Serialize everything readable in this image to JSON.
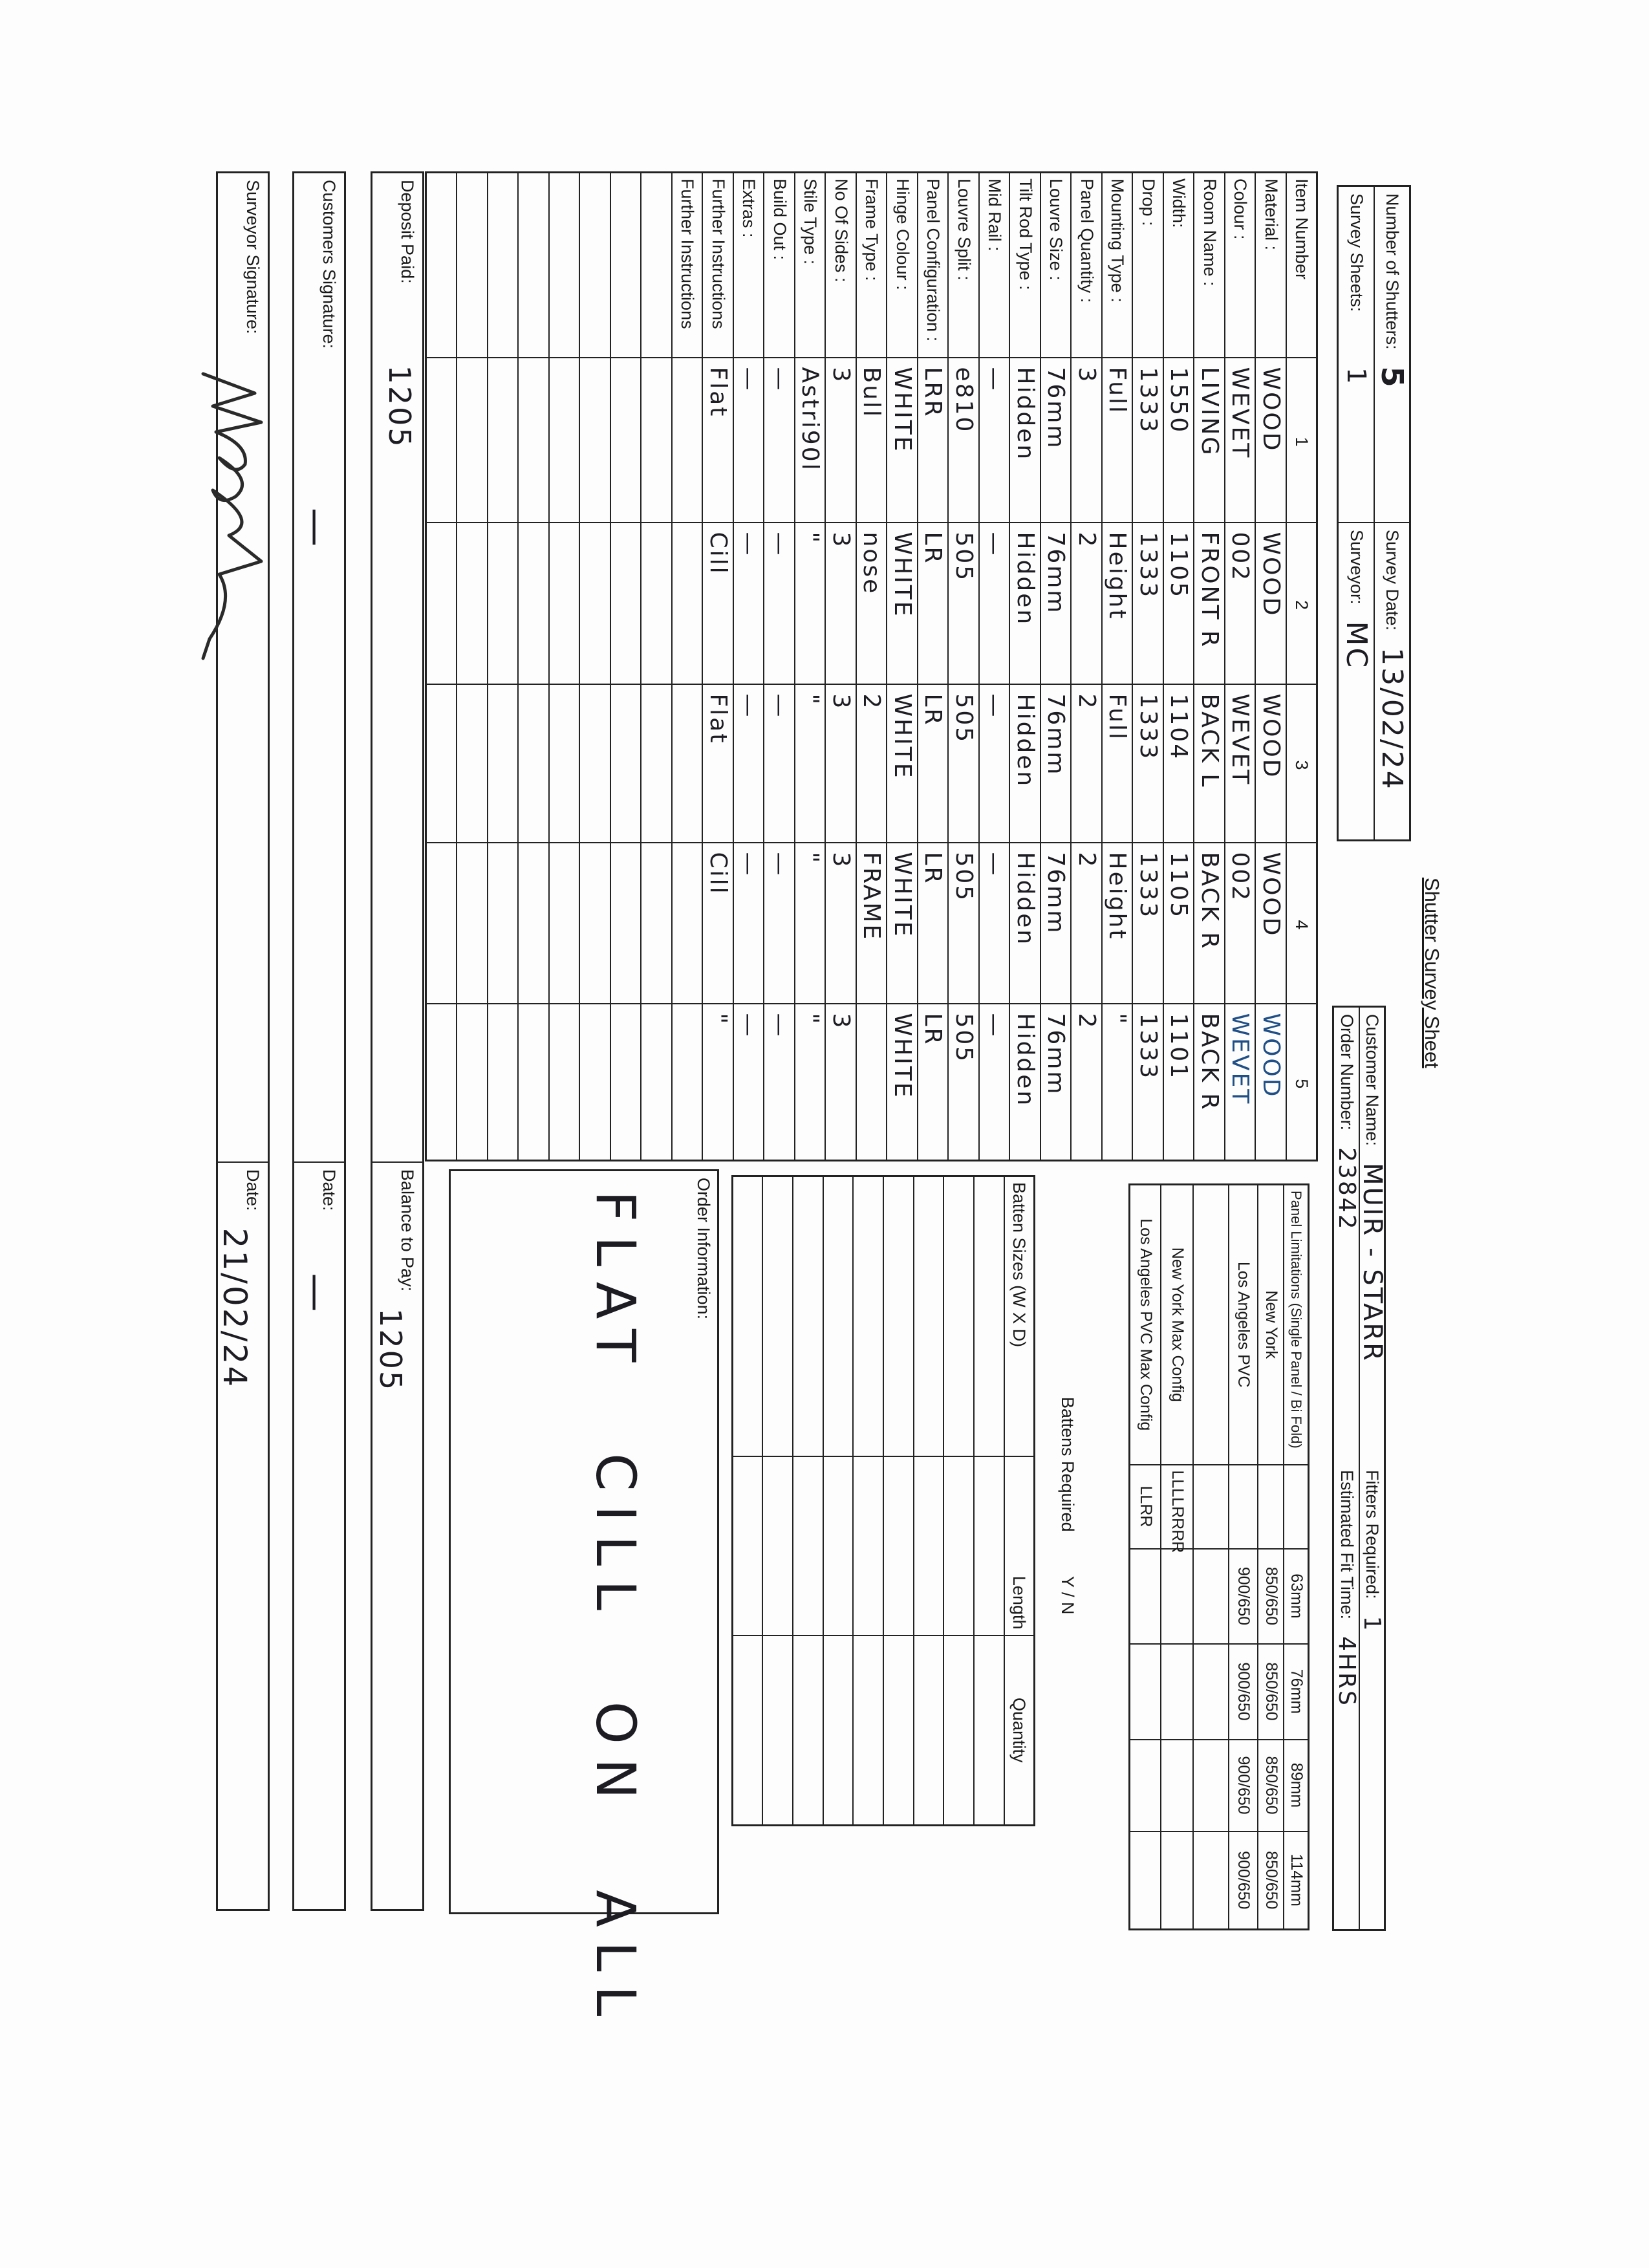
{
  "title": "Shutter Survey Sheet",
  "header": {
    "number_of_shutters_label": "Number of Shutters:",
    "number_of_shutters": "5",
    "survey_sheets_label": "Survey Sheets:",
    "survey_sheets": "1",
    "survey_date_label": "Survey Date:",
    "survey_date": "13/02/24",
    "surveyor_label": "Surveyor:",
    "surveyor": "MC",
    "customer_name_label": "Customer Name:",
    "customer_name": "MUIR - STARR",
    "order_number_label": "Order Number:",
    "order_number": "23842",
    "fitters_required_label": "Fitters Required:",
    "fitters_required": "1",
    "estimated_fit_time_label": "Estimated Fit Time:",
    "estimated_fit_time": "4HRS"
  },
  "colors": {
    "ink": "#1c1c22",
    "blue_ink": "#1f4f86",
    "lines": "#222222"
  },
  "main": {
    "rows": [
      {
        "label": "Item Number",
        "values": [
          "1",
          "2",
          "3",
          "4",
          "5"
        ]
      },
      {
        "label": "Material :",
        "values": [
          "WOOD",
          "WOOD",
          "WOOD",
          "WOOD",
          "WOOD"
        ]
      },
      {
        "label": "Colour :",
        "values": [
          "WEVET",
          "002",
          "WEVET",
          "002",
          "WEVET"
        ]
      },
      {
        "label": "Room Name :",
        "values": [
          "LIVING",
          "FRONT R",
          "BACK L",
          "BACK R",
          "BACK R"
        ]
      },
      {
        "label": "Width:",
        "values": [
          "1550",
          "1105",
          "1104",
          "1105",
          "1101"
        ]
      },
      {
        "label": "Drop :",
        "values": [
          "1333",
          "1333",
          "1333",
          "1333",
          "1333"
        ]
      },
      {
        "label": "Mounting Type :",
        "values": [
          "Full",
          "Height",
          "Full",
          "Height",
          "\""
        ]
      },
      {
        "label": "Panel Quantity :",
        "values": [
          "3",
          "2",
          "2",
          "2",
          "2"
        ]
      },
      {
        "label": "Louvre Size :",
        "values": [
          "76mm",
          "76mm",
          "76mm",
          "76mm",
          "76mm"
        ]
      },
      {
        "label": "Tilt Rod Type :",
        "values": [
          "Hidden",
          "Hidden",
          "Hidden",
          "Hidden",
          "Hidden"
        ]
      },
      {
        "label": "Mid Rail :",
        "values": [
          "—",
          "—",
          "—",
          "—",
          "—"
        ]
      },
      {
        "label": "Louvre Split :",
        "values": [
          "e810",
          "505",
          "505",
          "505",
          "505"
        ]
      },
      {
        "label": "Panel Configuration :",
        "values": [
          "LRR",
          "LR",
          "LR",
          "LR",
          "LR"
        ]
      },
      {
        "label": "Hinge Colour :",
        "values": [
          "WHITE",
          "WHITE",
          "WHITE",
          "WHITE",
          "WHITE"
        ]
      },
      {
        "label": "Frame Type :",
        "values": [
          "Bull",
          "nose",
          "2",
          "FRAME",
          ""
        ]
      },
      {
        "label": "No Of Sides :",
        "values": [
          "3",
          "3",
          "3",
          "3",
          "3"
        ]
      },
      {
        "label": "Stile Type :",
        "values": [
          "Astri90l",
          "\"",
          "\"",
          "\"",
          "\""
        ]
      },
      {
        "label": "Build Out :",
        "values": [
          "—",
          "—",
          "—",
          "—",
          "—"
        ]
      },
      {
        "label": "Extras :",
        "values": [
          "—",
          "—",
          "—",
          "—",
          "—"
        ]
      },
      {
        "label": "Further Instructions",
        "values": [
          "Flat",
          "Cill",
          "Flat",
          "Cill",
          "\""
        ]
      },
      {
        "label": "Further Instructions",
        "values": [
          "",
          "",
          "",
          "",
          ""
        ]
      },
      {
        "label": "",
        "values": [
          "",
          "",
          "",
          "",
          ""
        ]
      },
      {
        "label": "",
        "values": [
          "",
          "",
          "",
          "",
          ""
        ]
      },
      {
        "label": "",
        "values": [
          "",
          "",
          "",
          "",
          ""
        ]
      },
      {
        "label": "",
        "values": [
          "",
          "",
          "",
          "",
          ""
        ]
      },
      {
        "label": "",
        "values": [
          "",
          "",
          "",
          "",
          ""
        ]
      },
      {
        "label": "",
        "values": [
          "",
          "",
          "",
          "",
          ""
        ]
      },
      {
        "label": "",
        "values": [
          "",
          "",
          "",
          "",
          ""
        ]
      },
      {
        "label": "",
        "values": [
          "",
          "",
          "",
          "",
          ""
        ]
      }
    ]
  },
  "panel_limitations": {
    "rows": [
      [
        "Panel Limitations (Single Panel / Bi Fold)",
        "",
        "63mm",
        "76mm",
        "89mm",
        "114mm"
      ],
      [
        "New York",
        "",
        "850/650",
        "850/650",
        "850/650",
        "850/650"
      ],
      [
        "Los Angeles PVC",
        "",
        "900/650",
        "900/650",
        "900/650",
        "900/650"
      ],
      [
        "",
        "",
        "",
        "",
        "",
        ""
      ],
      [
        "New York Max Config",
        "LLLLRRRR",
        "",
        "",
        "",
        ""
      ],
      [
        "Los Angeles PVC Max Config",
        "LLRR",
        "",
        "",
        "",
        ""
      ]
    ]
  },
  "battens": {
    "required_label": "Battens Required",
    "required_options": "Y / N",
    "rows": [
      [
        "Batten Sizes (W X D)",
        "Length",
        "Quantity"
      ],
      [
        "",
        "",
        ""
      ],
      [
        "",
        "",
        ""
      ],
      [
        "",
        "",
        ""
      ],
      [
        "",
        "",
        ""
      ],
      [
        "",
        "",
        ""
      ],
      [
        "",
        "",
        ""
      ],
      [
        "",
        "",
        ""
      ],
      [
        "",
        "",
        ""
      ],
      [
        "",
        "",
        ""
      ]
    ]
  },
  "order_information": {
    "label": "Order Information:",
    "value": "FLAT CILL ON ALL"
  },
  "payment": {
    "deposit_label": "Deposit Paid:",
    "deposit": "1205",
    "balance_label": "Balance to Pay:",
    "balance": "1205"
  },
  "signatures": {
    "customer_label": "Customers Signature:",
    "customer_value": "—",
    "customer_date_label": "Date:",
    "customer_date": "—",
    "surveyor_label": "Surveyor Signature:",
    "surveyor_signature": "MC",
    "surveyor_date_label": "Date:",
    "surveyor_date": "21/02/24"
  }
}
